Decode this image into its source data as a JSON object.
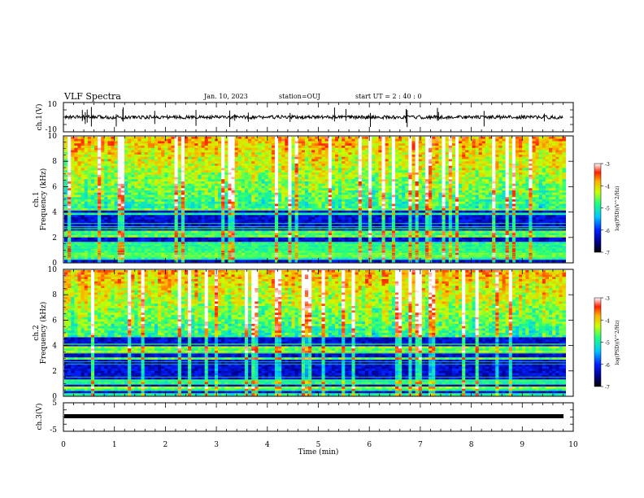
{
  "header": {
    "title": "VLF Spectra",
    "date": "Jan. 10, 2023",
    "station": "station=OUJ",
    "start": "start  UT =   2 : 40 : 0"
  },
  "chart_data": [
    {
      "type": "line",
      "title": "ch.1 waveform",
      "ylabel": "ch.1(V)",
      "ylim": [
        -10,
        10
      ],
      "yticks": [
        "10",
        "-10"
      ],
      "xlim": [
        0,
        10
      ],
      "baseline": 0,
      "noise_amplitude": 1.2
    },
    {
      "type": "heatmap",
      "title": "ch.1 spectrogram",
      "ylabel": "ch.1 Frequency (kHz)",
      "ylim": [
        0,
        10
      ],
      "yticks": [
        0,
        2,
        4,
        6,
        8,
        10
      ],
      "xlim": [
        0,
        9.85
      ],
      "quiet_band_top_khz": 4.2,
      "colorbar": {
        "label": "log(PSD)(V^2/Hz)",
        "range": [
          -7,
          -3
        ],
        "ticks": [
          "-3",
          "-4",
          "-5",
          "-6",
          "-7"
        ]
      }
    },
    {
      "type": "heatmap",
      "title": "ch.2 spectrogram",
      "ylabel": "ch.2 Frequency (kHz)",
      "ylim": [
        0,
        10
      ],
      "yticks": [
        0,
        2,
        4,
        6,
        8,
        10
      ],
      "xlim": [
        0,
        9.85
      ],
      "quiet_band_top_khz": 4.6,
      "colorbar": {
        "label": "log(PSD)(V^2/Hz)",
        "range": [
          -7,
          -3
        ],
        "ticks": [
          "-3",
          "-4",
          "-5",
          "-6",
          "-7"
        ]
      }
    },
    {
      "type": "line",
      "title": "ch.3 waveform",
      "ylabel": "ch.3(V)",
      "ylim": [
        -5,
        5
      ],
      "yticks": [
        "5",
        "-5"
      ],
      "xlim": [
        0,
        10
      ],
      "baseline": -1.2
    }
  ],
  "xaxis": {
    "label": "Time  (min)",
    "ticks": [
      "0",
      "1",
      "2",
      "3",
      "4",
      "5",
      "6",
      "7",
      "8",
      "9",
      "10"
    ]
  }
}
